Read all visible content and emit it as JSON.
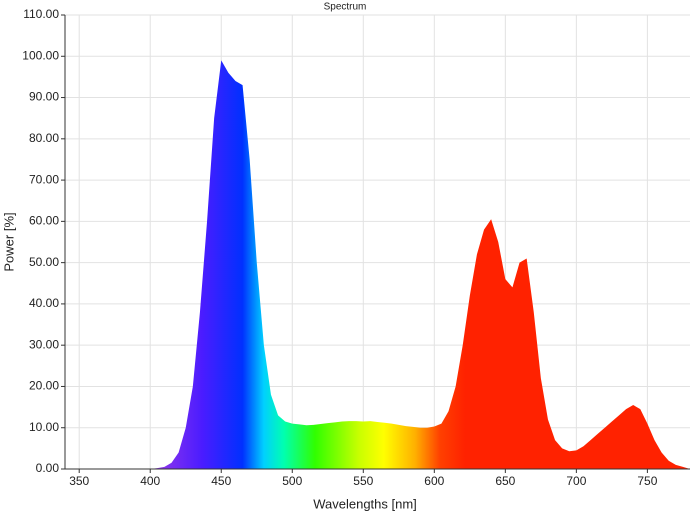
{
  "chart_data": {
    "type": "area",
    "title": "Spectrum",
    "xlabel": "Wavelengths [nm]",
    "ylabel": "Power [%]",
    "x": [
      345,
      350,
      355,
      360,
      365,
      370,
      375,
      380,
      385,
      390,
      395,
      400,
      405,
      410,
      415,
      420,
      425,
      430,
      435,
      440,
      445,
      450,
      455,
      460,
      465,
      470,
      475,
      480,
      485,
      490,
      495,
      500,
      505,
      510,
      515,
      520,
      525,
      530,
      535,
      540,
      545,
      550,
      555,
      560,
      565,
      570,
      575,
      580,
      585,
      590,
      595,
      600,
      605,
      610,
      615,
      620,
      625,
      630,
      635,
      640,
      645,
      650,
      655,
      660,
      665,
      670,
      675,
      680,
      685,
      690,
      695,
      700,
      705,
      710,
      715,
      720,
      725,
      730,
      735,
      740,
      745,
      750,
      755,
      760,
      765,
      770,
      775,
      780
    ],
    "values": [
      0,
      0,
      0,
      0,
      0,
      0,
      0,
      0,
      0,
      0,
      0,
      0,
      0.2,
      0.5,
      1.5,
      4,
      10,
      20,
      38,
      60,
      85,
      99,
      96,
      94,
      93,
      75,
      50,
      30,
      18,
      13,
      11.5,
      11,
      10.8,
      10.6,
      10.7,
      10.9,
      11.1,
      11.3,
      11.5,
      11.6,
      11.6,
      11.5,
      11.6,
      11.4,
      11.2,
      11,
      10.7,
      10.4,
      10.2,
      10,
      10,
      10.3,
      11,
      14,
      20,
      30,
      42,
      52,
      58,
      60.5,
      55,
      46,
      44,
      50,
      51,
      38,
      22,
      12,
      7,
      5,
      4.3,
      4.5,
      5.5,
      7,
      8.5,
      10,
      11.5,
      13,
      14.5,
      15.5,
      14.5,
      11,
      7,
      4,
      2,
      1,
      0.5,
      0
    ],
    "xlim": [
      340,
      780
    ],
    "ylim": [
      0,
      110
    ],
    "xticks": [
      350,
      400,
      450,
      500,
      550,
      600,
      650,
      700,
      750
    ],
    "yticks": [
      {
        "value": 0,
        "label": "0.00"
      },
      {
        "value": 10,
        "label": "10.00"
      },
      {
        "value": 20,
        "label": "20.00"
      },
      {
        "value": 30,
        "label": "30.00"
      },
      {
        "value": 40,
        "label": "40.00"
      },
      {
        "value": 50,
        "label": "50.00"
      },
      {
        "value": 60,
        "label": "60.00"
      },
      {
        "value": 70,
        "label": "70.00"
      },
      {
        "value": 80,
        "label": "80.00"
      },
      {
        "value": 90,
        "label": "90.00"
      },
      {
        "value": 100,
        "label": "100.00"
      },
      {
        "value": 110,
        "label": "110.00"
      }
    ],
    "grid": true
  }
}
